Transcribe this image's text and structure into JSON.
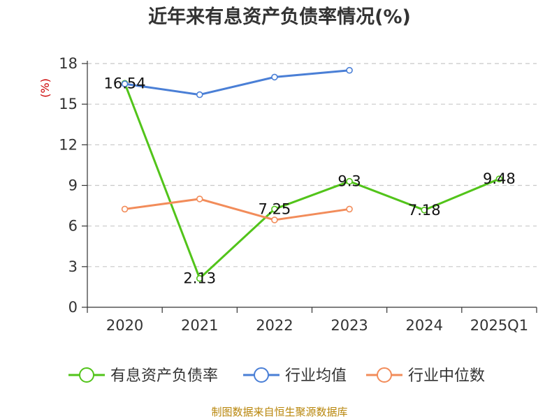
{
  "chart_data": {
    "type": "line",
    "title": "近年来有息资产负债率情况(%)",
    "ylabel": "(%)",
    "xlabel": "",
    "categories": [
      "2020",
      "2021",
      "2022",
      "2023",
      "2024",
      "2025Q1"
    ],
    "yticks": [
      0,
      3,
      6,
      9,
      12,
      15,
      18
    ],
    "ylim": [
      0,
      18
    ],
    "grid": true,
    "legend": "bottom",
    "series": [
      {
        "name": "有息资产负债率",
        "color": "#52c41a",
        "values": [
          16.54,
          2.13,
          7.25,
          9.3,
          7.18,
          9.48
        ],
        "labels": [
          "16.54",
          "2.13",
          "7.25",
          "9.3",
          "7.18",
          "9.48"
        ]
      },
      {
        "name": "行业均值",
        "color": "#4a7fd6",
        "values": [
          16.5,
          15.7,
          17.0,
          17.5,
          null,
          null
        ]
      },
      {
        "name": "行业中位数",
        "color": "#f28c5a",
        "values": [
          7.25,
          8.0,
          6.45,
          7.25,
          null,
          null
        ]
      }
    ]
  },
  "footer": {
    "source": "制图数据来自恒生聚源数据库"
  }
}
